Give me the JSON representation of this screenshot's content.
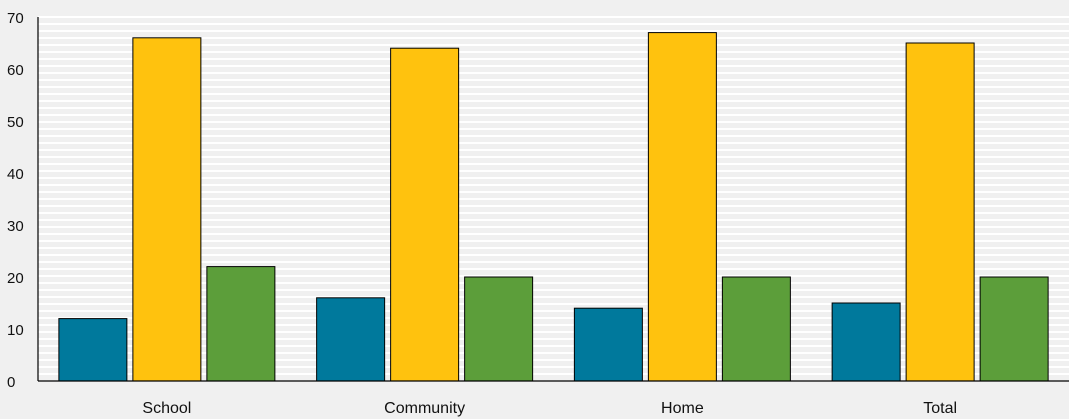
{
  "chart_data": {
    "type": "bar",
    "categories": [
      "School",
      "Community",
      "Home",
      "Total"
    ],
    "series": [
      {
        "color": "#00799c",
        "values": [
          12,
          16,
          14,
          15
        ]
      },
      {
        "color": "#ffc20e",
        "values": [
          66,
          64,
          67,
          65
        ]
      },
      {
        "color": "#5c9e3a",
        "values": [
          22,
          20,
          20,
          20
        ]
      }
    ],
    "yticks": [
      "0",
      "10",
      "20",
      "30",
      "40",
      "50",
      "60",
      "70"
    ],
    "ylim": [
      0,
      70
    ],
    "title": "",
    "xlabel": "",
    "ylabel": "",
    "grid": true,
    "grid_style": "dense light horizontal lines"
  }
}
